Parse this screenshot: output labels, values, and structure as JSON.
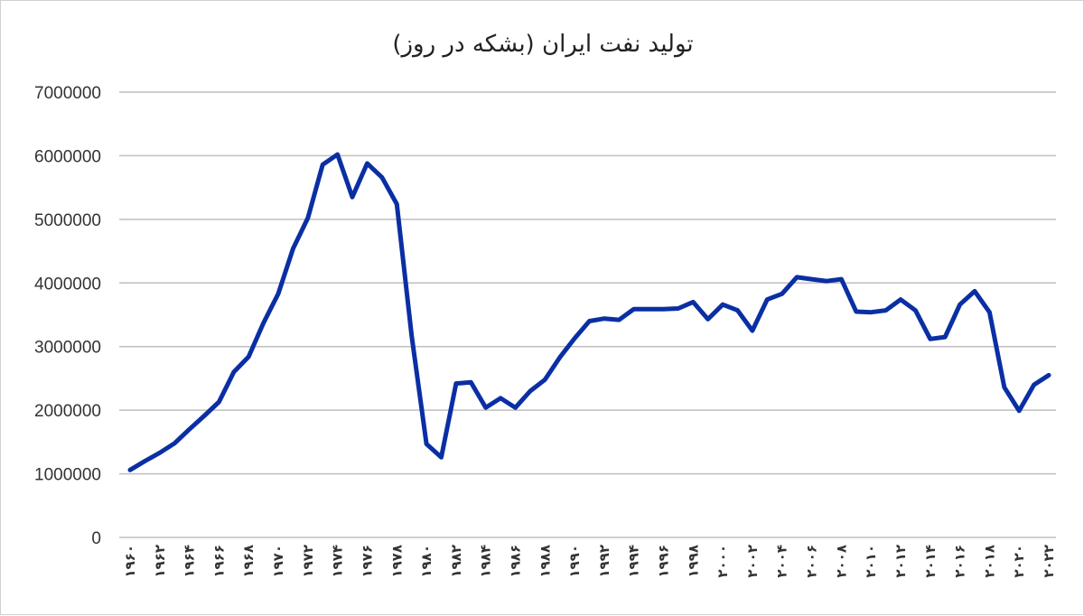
{
  "colors": {
    "series": "#0a2fa4",
    "grid": "#bfbfbf",
    "text": "#333333"
  },
  "chart_data": {
    "type": "line",
    "title": "تولید نفت ایران (بشکه در روز)",
    "xlabel": "",
    "ylabel": "",
    "ylim": [
      0,
      7000000
    ],
    "yticks": [
      0,
      1000000,
      2000000,
      3000000,
      4000000,
      5000000,
      6000000,
      7000000
    ],
    "ytick_labels": [
      "0",
      "1000000",
      "2000000",
      "3000000",
      "4000000",
      "5000000",
      "6000000",
      "7000000"
    ],
    "grid": true,
    "legend": "none",
    "x": [
      1960,
      1961,
      1962,
      1963,
      1964,
      1965,
      1966,
      1967,
      1968,
      1969,
      1970,
      1971,
      1972,
      1973,
      1974,
      1975,
      1976,
      1977,
      1978,
      1979,
      1980,
      1981,
      1982,
      1983,
      1984,
      1985,
      1986,
      1987,
      1988,
      1989,
      1990,
      1991,
      1992,
      1993,
      1994,
      1995,
      1996,
      1997,
      1998,
      1999,
      2000,
      2001,
      2002,
      2003,
      2004,
      2005,
      2006,
      2007,
      2008,
      2009,
      2010,
      2011,
      2012,
      2013,
      2014,
      2015,
      2016,
      2017,
      2018,
      2019,
      2020,
      2021,
      2022
    ],
    "xtick_values": [
      1960,
      1962,
      1964,
      1966,
      1968,
      1970,
      1972,
      1974,
      1976,
      1978,
      1980,
      1982,
      1984,
      1986,
      1988,
      1990,
      1992,
      1994,
      1996,
      1998,
      2000,
      2002,
      2004,
      2006,
      2008,
      2010,
      2012,
      2014,
      2016,
      2018,
      2020,
      2022
    ],
    "xtick_labels": [
      "۱۹۶۰",
      "۱۹۶۲",
      "۱۹۶۴",
      "۱۹۶۶",
      "۱۹۶۸",
      "۱۹۷۰",
      "۱۹۷۲",
      "۱۹۷۴",
      "۱۹۷۶",
      "۱۹۷۸",
      "۱۹۸۰",
      "۱۹۸۲",
      "۱۹۸۴",
      "۱۹۸۶",
      "۱۹۸۸",
      "۱۹۹۰",
      "۱۹۹۲",
      "۱۹۹۴",
      "۱۹۹۶",
      "۱۹۹۸",
      "۲۰۰۰",
      "۲۰۰۲",
      "۲۰۰۴",
      "۲۰۰۶",
      "۲۰۰۸",
      "۲۰۱۰",
      "۲۰۱۲",
      "۲۰۱۴",
      "۲۰۱۶",
      "۲۰۱۸",
      "۲۰۲۰",
      "۲۰۲۲"
    ],
    "series": [
      {
        "values": [
          1060000,
          1200000,
          1330000,
          1480000,
          1700000,
          1910000,
          2130000,
          2600000,
          2840000,
          3370000,
          3830000,
          4540000,
          5020000,
          5860000,
          6020000,
          5350000,
          5880000,
          5660000,
          5240000,
          3170000,
          1470000,
          1260000,
          2420000,
          2440000,
          2040000,
          2190000,
          2040000,
          2300000,
          2480000,
          2830000,
          3130000,
          3400000,
          3440000,
          3420000,
          3590000,
          3590000,
          3590000,
          3600000,
          3700000,
          3430000,
          3660000,
          3570000,
          3250000,
          3740000,
          3830000,
          4090000,
          4060000,
          4030000,
          4060000,
          3550000,
          3540000,
          3570000,
          3740000,
          3570000,
          3120000,
          3150000,
          3660000,
          3870000,
          3540000,
          2360000,
          1990000,
          2400000,
          2550000
        ]
      }
    ]
  }
}
